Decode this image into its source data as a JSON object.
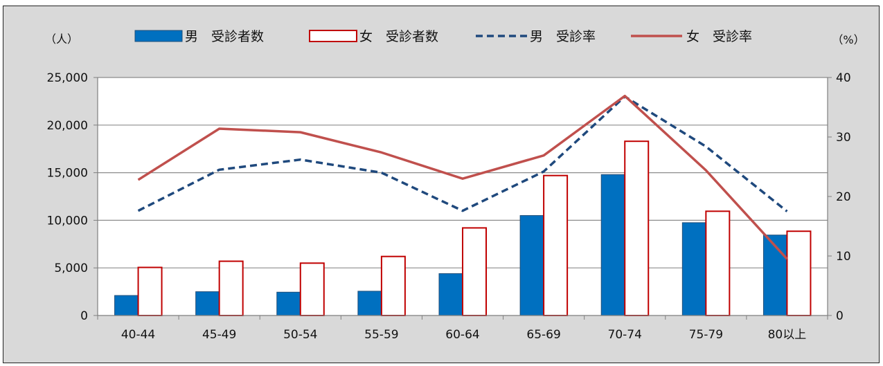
{
  "chart_data": {
    "type": "bar",
    "categories": [
      "40-44",
      "45-49",
      "50-54",
      "55-59",
      "60-64",
      "65-69",
      "70-74",
      "75-79",
      "80以上"
    ],
    "series": [
      {
        "name": "男　受診者数",
        "kind": "bar",
        "axis": "left",
        "color": "#0070c0",
        "values": [
          2100,
          2500,
          2450,
          2550,
          4400,
          10500,
          14800,
          9750,
          8450
        ]
      },
      {
        "name": "女　受診者数",
        "kind": "bar",
        "axis": "left",
        "color": "#c00000",
        "values": [
          5050,
          5700,
          5500,
          6200,
          9200,
          14700,
          18300,
          10950,
          8850
        ]
      },
      {
        "name": "男　受診率",
        "kind": "line",
        "axis": "right",
        "color": "#1f497d",
        "dash": "dashed",
        "values": [
          17.6,
          24.5,
          26.2,
          24.0,
          17.6,
          24.2,
          36.8,
          28.4,
          17.5
        ]
      },
      {
        "name": "女　受診率",
        "kind": "line",
        "axis": "right",
        "color": "#c0504d",
        "dash": "solid",
        "values": [
          22.8,
          31.4,
          30.8,
          27.4,
          23.0,
          26.9,
          36.9,
          24.4,
          9.5
        ]
      }
    ],
    "left_axis": {
      "unit_label": "（人）",
      "ylim": [
        0,
        25000
      ],
      "ticks": [
        "0",
        "5,000",
        "10,000",
        "15,000",
        "20,000",
        "25,000"
      ]
    },
    "right_axis": {
      "unit_label": "（%）",
      "ylim": [
        0,
        40
      ],
      "ticks": [
        "0",
        "10",
        "20",
        "30",
        "40"
      ]
    },
    "grid": true,
    "legend_position": "top"
  }
}
